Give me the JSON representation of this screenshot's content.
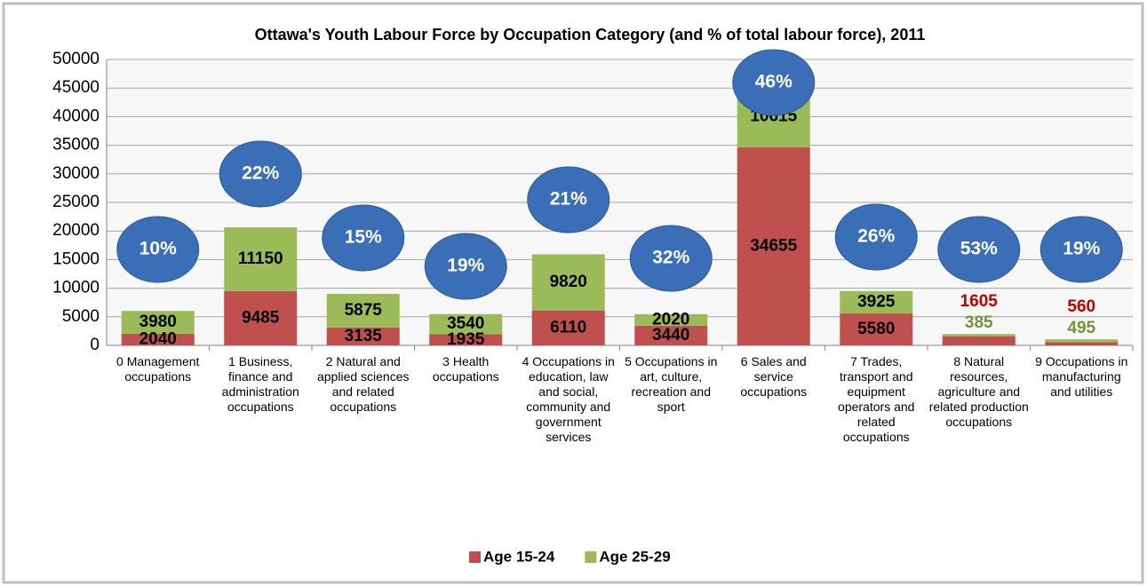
{
  "chart_data": {
    "type": "stacked_bar",
    "title": "Ottawa's Youth Labour Force by Occupation Category (and % of total labour force), 2011",
    "categories": [
      "0 Management occupations",
      "1 Business, finance and administration occupations",
      "2 Natural and applied sciences and related occupations",
      "3 Health occupations",
      "4 Occupations in education, law and social, community and government services",
      "5 Occupations in art, culture, recreation and sport",
      "6 Sales and service occupations",
      "7 Trades, transport and equipment operators and related occupations",
      "8 Natural resources, agriculture and related production occupations",
      "9 Occupations in manufacturing and utilities"
    ],
    "series": [
      {
        "name": "Age 15-24",
        "color": "#c0504d",
        "values": [
          2040,
          9485,
          3135,
          1935,
          6110,
          3440,
          34655,
          5580,
          1605,
          560
        ]
      },
      {
        "name": "Age 25-29",
        "color": "#9bbb59",
        "values": [
          3980,
          11150,
          5875,
          3540,
          9820,
          2020,
          10615,
          3925,
          385,
          495
        ]
      }
    ],
    "shares": {
      "color": "#3a6fb8",
      "values": [
        10,
        22,
        15,
        19,
        21,
        32,
        46,
        26,
        53,
        19
      ],
      "value_labels": [
        "10%",
        "22%",
        "15%",
        "19%",
        "21%",
        "32%",
        "46%",
        "26%",
        "53%",
        "19%"
      ]
    },
    "ylim": [
      0,
      50000
    ],
    "yticks": [
      0,
      5000,
      10000,
      15000,
      20000,
      25000,
      30000,
      35000,
      40000,
      45000,
      50000
    ],
    "grid": true,
    "legend": "bottom"
  }
}
